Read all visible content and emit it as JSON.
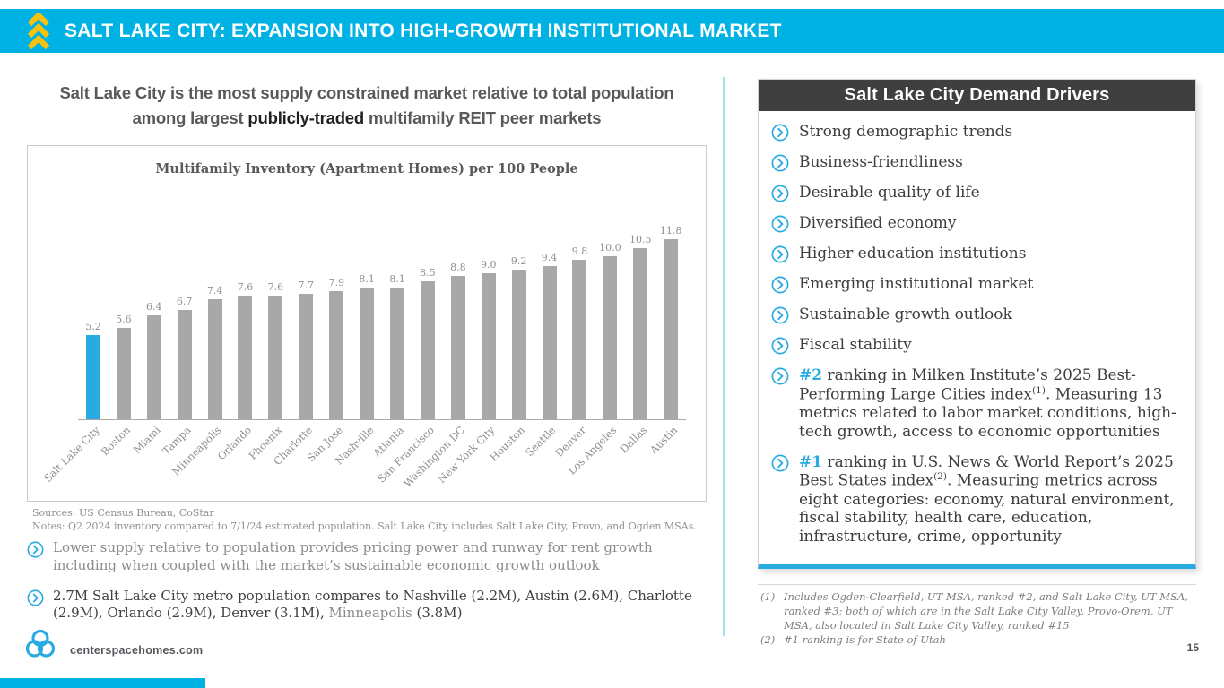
{
  "colors": {
    "accent": "#29abe2",
    "header_bar": "#00b2e3",
    "chevron_yellow": "#f9c20e",
    "bar_gray": "#a8a8a8",
    "panel_header_bg": "#3f3f3f"
  },
  "header": {
    "title": "SALT LAKE CITY: EXPANSION INTO HIGH-GROWTH INSTITUTIONAL MARKET"
  },
  "left": {
    "heading": {
      "line1": "Salt Lake City is the most supply constrained market relative to total population",
      "line2_pre": "among largest ",
      "line2_bold": "publicly-traded",
      "line2_post": " multifamily REIT peer markets"
    },
    "sources": "Sources: US Census Bureau, CoStar",
    "notes": "Notes: Q2 2024 inventory compared to 7/1/24 estimated population. Salt Lake City includes Salt Lake City, Provo, and Ogden MSAs.",
    "bullets": [
      {
        "segments": [
          {
            "text": "Lower supply relative to population provides pricing power and runway for rent growth including when coupled with the market’s sustainable economic growth outlook",
            "style": "muted"
          }
        ]
      },
      {
        "segments": [
          {
            "text": "2.7M Salt Lake City metro population compares to Nashville (2.2M), Austin (2.6M), Charlotte (2.9M), Orlando (2.9M), Denver (3.1M), ",
            "style": "dark"
          },
          {
            "text": "Minneapolis",
            "style": "muted"
          },
          {
            "text": " (3.8M)",
            "style": "dark"
          }
        ]
      }
    ]
  },
  "chart_data": {
    "type": "bar",
    "title": "Multifamily Inventory (Apartment Homes) per 100 People",
    "categories": [
      "Salt Lake City",
      "Boston",
      "Miami",
      "Tampa",
      "Minneapolis",
      "Orlando",
      "Phoenix",
      "Charlotte",
      "San Jose",
      "Nashville",
      "Atlanta",
      "San Francisco",
      "Washington DC",
      "New York City",
      "Houston",
      "Seattle",
      "Denver",
      "Los Angeles",
      "Dallas",
      "Austin"
    ],
    "values": [
      5.2,
      5.6,
      6.4,
      6.7,
      7.4,
      7.6,
      7.6,
      7.7,
      7.9,
      8.1,
      8.1,
      8.5,
      8.8,
      9.0,
      9.2,
      9.4,
      9.8,
      10.0,
      10.5,
      11.8
    ],
    "highlight_index": 0,
    "highlight_color": "#29abe2",
    "bar_color": "#a8a8a8",
    "xlabel": "",
    "ylabel": "",
    "ylim": [
      0,
      12
    ],
    "grid": false,
    "legend": false,
    "value_labels": true
  },
  "right": {
    "panel_title": "Salt Lake City Demand Drivers",
    "drivers": [
      {
        "segments": [
          {
            "text": "Strong demographic trends",
            "style": "normal"
          }
        ]
      },
      {
        "segments": [
          {
            "text": "Business-friendliness",
            "style": "normal"
          }
        ]
      },
      {
        "segments": [
          {
            "text": "Desirable quality of life",
            "style": "normal"
          }
        ]
      },
      {
        "segments": [
          {
            "text": "Diversified economy",
            "style": "normal"
          }
        ]
      },
      {
        "segments": [
          {
            "text": "Higher education institutions",
            "style": "normal"
          }
        ]
      },
      {
        "segments": [
          {
            "text": "Emerging institutional market",
            "style": "normal"
          }
        ]
      },
      {
        "segments": [
          {
            "text": "Sustainable growth outlook",
            "style": "normal"
          }
        ]
      },
      {
        "segments": [
          {
            "text": "Fiscal stability",
            "style": "normal"
          }
        ]
      },
      {
        "segments": [
          {
            "text": "#2",
            "style": "accent"
          },
          {
            "text": " ranking in Milken Institute’s 2025 Best-Performing Large Cities index",
            "style": "normal"
          },
          {
            "text": "(1)",
            "style": "sup"
          },
          {
            "text": ". Measuring 13 metrics related to labor market conditions, high-tech growth, access to economic opportunities",
            "style": "normal"
          }
        ]
      },
      {
        "segments": [
          {
            "text": "#1",
            "style": "accent"
          },
          {
            "text": " ranking in U.S. News & World Report’s 2025 Best States index",
            "style": "normal"
          },
          {
            "text": "(2)",
            "style": "sup"
          },
          {
            "text": ". Measuring metrics across eight categories: economy, natural environment, fiscal stability, health care, education, infrastructure, crime, opportunity",
            "style": "normal"
          }
        ]
      }
    ],
    "footnotes": [
      {
        "num": "(1)",
        "text": "Includes Ogden-Clearfield, UT MSA, ranked #2, and Salt Lake City, UT MSA, ranked #3; both of which are in the Salt Lake City Valley.  Provo-Orem, UT MSA, also located in Salt Lake City Valley, ranked #15"
      },
      {
        "num": "(2)",
        "text": "#1 ranking is for State of Utah"
      }
    ]
  },
  "footer": {
    "website": "centerspacehomes.com",
    "page_number": "15"
  }
}
